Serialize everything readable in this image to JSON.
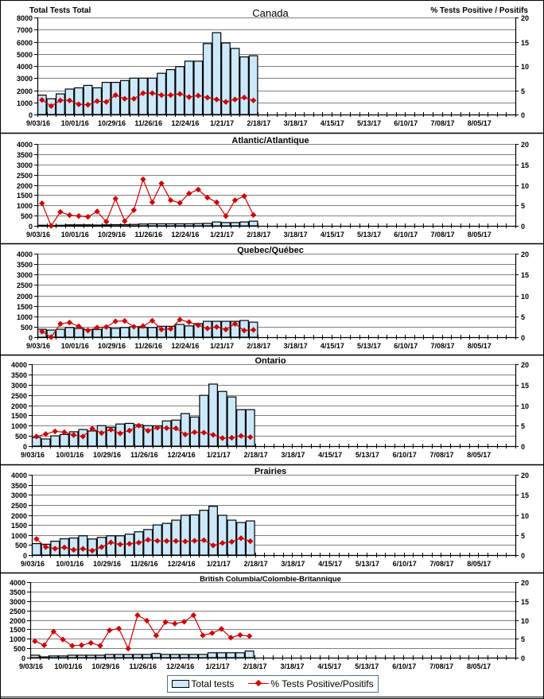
{
  "legend": {
    "bars_label": "Total tests",
    "line_label": "% Tests Positive/Positifs"
  },
  "colors": {
    "bar_fill": "#cce8fb",
    "bar_stroke": "#000000",
    "line": "#cc0000",
    "grid": "#808080"
  },
  "chart_data": [
    {
      "type": "bar",
      "title": "Canada",
      "ylabel": "Total Tests Total",
      "y2label": "% Tests Positive / Positifs",
      "ylim": [
        0,
        8000
      ],
      "yticks": [
        "0",
        "1000",
        "2000",
        "3000",
        "4000",
        "5000",
        "6000",
        "7000",
        "8000"
      ],
      "y2lim": [
        0,
        20
      ],
      "y2ticks": [
        "0",
        "5",
        "10",
        "15",
        "20"
      ],
      "xtick_labels": [
        "9/03/16",
        "10/01/16",
        "10/29/16",
        "11/26/16",
        "12/24/16",
        "1/21/17",
        "2/18/17",
        "3/18/17",
        "4/15/17",
        "5/13/17",
        "6/10/17",
        "7/08/17",
        "8/05/17"
      ],
      "weeks_total": 52,
      "grid": true,
      "series": [
        {
          "name": "Total tests",
          "kind": "bar",
          "values": [
            1600,
            1300,
            1700,
            2100,
            2200,
            2400,
            2200,
            2650,
            2650,
            2800,
            3000,
            3000,
            3000,
            3400,
            3700,
            3950,
            4400,
            4400,
            5850,
            6750,
            5900,
            5450,
            4750,
            4850
          ]
        },
        {
          "name": "% Tests Positive/Positifs",
          "kind": "line",
          "axis": "right",
          "values": [
            3.0,
            1.75,
            2.9,
            2.9,
            2.1,
            2.0,
            2.75,
            2.6,
            4.0,
            3.25,
            3.25,
            4.4,
            4.4,
            4.0,
            4.0,
            4.25,
            3.6,
            3.9,
            3.5,
            3.1,
            2.6,
            3.1,
            3.5,
            2.9
          ]
        }
      ]
    },
    {
      "type": "bar",
      "title": "Atlantic/Atlantique",
      "ylim": [
        0,
        4000
      ],
      "yticks": [
        "0",
        "500",
        "1000",
        "1500",
        "2000",
        "2500",
        "3000",
        "3500",
        "4000"
      ],
      "y2lim": [
        0,
        20
      ],
      "y2ticks": [
        "0",
        "5",
        "10",
        "15",
        "20"
      ],
      "xtick_labels": [
        "9/03/16",
        "10/01/16",
        "10/29/16",
        "11/26/16",
        "12/24/16",
        "1/21/17",
        "2/18/17",
        "3/18/17",
        "4/15/17",
        "5/13/17",
        "6/10/17",
        "7/08/17",
        "8/05/17"
      ],
      "weeks_total": 52,
      "grid": true,
      "series": [
        {
          "name": "Total tests",
          "kind": "bar",
          "values": [
            30,
            20,
            30,
            50,
            50,
            50,
            40,
            50,
            60,
            60,
            70,
            90,
            100,
            100,
            100,
            100,
            100,
            110,
            120,
            190,
            160,
            160,
            190,
            230
          ]
        },
        {
          "name": "% Tests Positive/Positifs",
          "kind": "line",
          "axis": "right",
          "values": [
            5.5,
            0.0,
            3.4,
            2.6,
            2.4,
            2.2,
            3.5,
            1.0,
            6.65,
            1.15,
            3.85,
            11.35,
            5.75,
            10.35,
            6.25,
            5.6,
            7.9,
            8.85,
            6.9,
            5.75,
            2.4,
            6.25,
            7.25,
            2.65
          ]
        }
      ]
    },
    {
      "type": "bar",
      "title": "Quebec/Québec",
      "ylim": [
        0,
        4000
      ],
      "yticks": [
        "0",
        "500",
        "1000",
        "1500",
        "2000",
        "2500",
        "3000",
        "3500",
        "4000"
      ],
      "y2lim": [
        0,
        20
      ],
      "y2ticks": [
        "0",
        "5",
        "10",
        "15",
        "20"
      ],
      "xtick_labels": [
        "9/03/16",
        "10/01/16",
        "10/29/16",
        "11/26/16",
        "12/24/16",
        "1/21/17",
        "2/18/17",
        "3/18/17",
        "4/15/17",
        "5/13/17",
        "6/10/17",
        "7/08/17",
        "8/05/17"
      ],
      "weeks_total": 52,
      "grid": true,
      "series": [
        {
          "name": "Total tests",
          "kind": "bar",
          "values": [
            380,
            340,
            380,
            460,
            420,
            370,
            370,
            460,
            420,
            460,
            500,
            460,
            460,
            520,
            520,
            610,
            540,
            650,
            760,
            760,
            760,
            760,
            800,
            720
          ]
        },
        {
          "name": "% Tests Positive/Positifs",
          "kind": "line",
          "axis": "right",
          "values": [
            1.35,
            0.0,
            3.2,
            3.5,
            2.6,
            1.6,
            2.3,
            2.45,
            3.8,
            3.9,
            2.5,
            2.65,
            3.95,
            1.85,
            2.0,
            4.2,
            3.6,
            2.85,
            2.1,
            2.45,
            1.85,
            3.2,
            1.6,
            1.75
          ]
        }
      ]
    },
    {
      "type": "bar",
      "title": "Ontario",
      "ylim": [
        0,
        4000
      ],
      "yticks": [
        "0",
        "500",
        "1000",
        "1500",
        "2000",
        "2500",
        "3000",
        "3500",
        "4000"
      ],
      "y2lim": [
        0,
        20
      ],
      "y2ticks": [
        "0",
        "5",
        "10",
        "15",
        "20"
      ],
      "xtick_labels": [
        "9/03/16",
        "10/01/16",
        "10/29/16",
        "11/26/16",
        "12/24/16",
        "1/21/17",
        "2/18/17",
        "3/18/17",
        "4/15/17",
        "5/13/17",
        "6/10/17",
        "7/08/17",
        "8/05/17"
      ],
      "weeks_total": 52,
      "grid": true,
      "series": [
        {
          "name": "Total tests",
          "kind": "bar",
          "values": [
            420,
            350,
            500,
            570,
            700,
            810,
            740,
            1000,
            920,
            1080,
            1110,
            1040,
            1000,
            990,
            1230,
            1270,
            1590,
            1420,
            2480,
            3030,
            2670,
            2400,
            1780,
            1780
          ]
        },
        {
          "name": "% Tests Positive/Positifs",
          "kind": "line",
          "axis": "right",
          "values": [
            2.35,
            2.95,
            3.6,
            3.4,
            2.7,
            2.35,
            4.3,
            3.2,
            4.05,
            3.1,
            3.8,
            5.0,
            3.75,
            4.5,
            4.4,
            4.35,
            2.85,
            3.4,
            3.3,
            2.75,
            1.95,
            2.05,
            2.5,
            2.2
          ]
        }
      ]
    },
    {
      "type": "bar",
      "title": "Prairies",
      "ylim": [
        0,
        4000
      ],
      "yticks": [
        "0",
        "500",
        "1000",
        "1500",
        "2000",
        "2500",
        "3000",
        "3500",
        "4000"
      ],
      "y2lim": [
        0,
        20
      ],
      "y2ticks": [
        "0",
        "5",
        "10",
        "15",
        "20"
      ],
      "xtick_labels": [
        "9/03/16",
        "10/01/16",
        "10/29/16",
        "11/26/16",
        "12/24/16",
        "1/21/17",
        "2/18/17",
        "3/18/17",
        "4/15/17",
        "5/13/17",
        "6/10/17",
        "7/08/17",
        "8/05/17"
      ],
      "weeks_total": 52,
      "grid": true,
      "series": [
        {
          "name": "Total tests",
          "kind": "bar",
          "values": [
            570,
            540,
            690,
            810,
            850,
            960,
            800,
            880,
            960,
            960,
            1040,
            1160,
            1270,
            1500,
            1580,
            1740,
            1980,
            2000,
            2230,
            2430,
            1980,
            1740,
            1620,
            1700
          ]
        },
        {
          "name": "% Tests Positive/Positifs",
          "kind": "line",
          "axis": "right",
          "values": [
            4.0,
            2.0,
            1.6,
            1.9,
            1.3,
            1.55,
            1.1,
            2.0,
            3.15,
            2.65,
            2.8,
            3.1,
            3.8,
            3.55,
            3.5,
            3.5,
            3.4,
            3.55,
            3.7,
            2.4,
            3.0,
            3.3,
            4.2,
            3.45
          ]
        }
      ]
    },
    {
      "type": "bar",
      "title": "British Columbia/Colombie-Britannique",
      "ylim": [
        0,
        4000
      ],
      "yticks": [
        "0",
        "500",
        "1000",
        "1500",
        "2000",
        "2500",
        "3000",
        "3500",
        "4000"
      ],
      "y2lim": [
        0,
        20
      ],
      "y2ticks": [
        "0",
        "5",
        "10",
        "15",
        "20"
      ],
      "xtick_labels": [
        "9/03/16",
        "10/01/16",
        "10/29/16",
        "11/26/16",
        "12/24/16",
        "1/21/17",
        "2/18/17",
        "3/18/17",
        "4/15/17",
        "5/13/17",
        "6/10/17",
        "7/08/17",
        "8/05/17"
      ],
      "weeks_total": 52,
      "grid": true,
      "series": [
        {
          "name": "Total tests",
          "kind": "bar",
          "values": [
            130,
            40,
            90,
            90,
            130,
            130,
            130,
            130,
            170,
            170,
            170,
            170,
            170,
            220,
            170,
            170,
            170,
            170,
            170,
            260,
            260,
            260,
            260,
            350
          ]
        },
        {
          "name": "% Tests Positive/Positifs",
          "kind": "line",
          "axis": "right",
          "values": [
            4.35,
            3.3,
            6.9,
            4.8,
            3.15,
            3.3,
            3.9,
            3.15,
            7.25,
            7.7,
            2.4,
            11.25,
            9.8,
            5.85,
            9.4,
            9.0,
            9.5,
            11.25,
            5.9,
            6.5,
            7.6,
            5.3,
            6.0,
            5.7
          ]
        }
      ]
    }
  ]
}
